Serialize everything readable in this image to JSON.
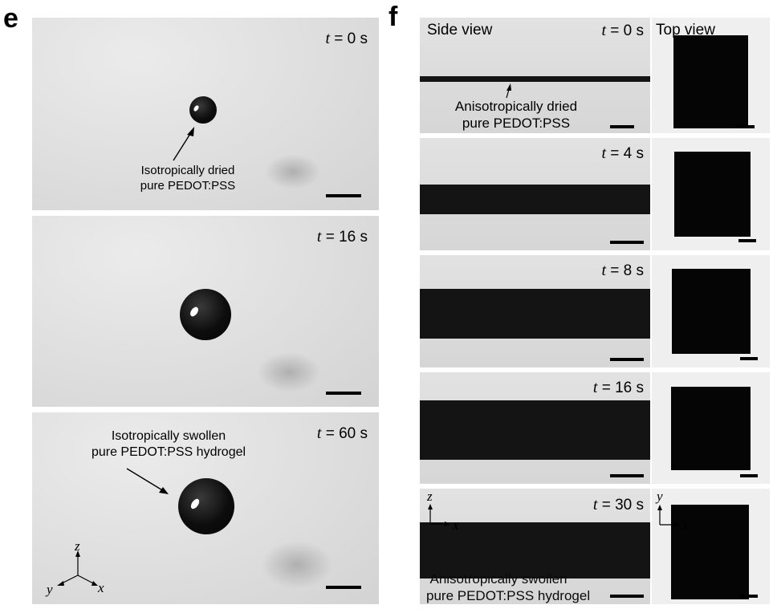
{
  "panel_e": {
    "label": "e",
    "frames": [
      {
        "time_var": "t",
        "time_rest": " = 0 s",
        "annotation": [
          "Isotropically dried",
          "pure PEDOT:PSS"
        ]
      },
      {
        "time_var": "t",
        "time_rest": " = 16 s"
      },
      {
        "time_var": "t",
        "time_rest": " = 60 s",
        "annotation": [
          "Isotropically swollen",
          "pure PEDOT:PSS hydrogel"
        ]
      }
    ],
    "axes": {
      "z": "z",
      "y": "y",
      "x": "x"
    }
  },
  "panel_f": {
    "label": "f",
    "side_view_title": "Side view",
    "top_view_title": "Top view",
    "rows": [
      {
        "time_var": "t",
        "time_rest": " = 0 s",
        "annotation": [
          "Anisotropically dried",
          "pure PEDOT:PSS"
        ]
      },
      {
        "time_var": "t",
        "time_rest": " = 4 s"
      },
      {
        "time_var": "t",
        "time_rest": " = 8 s"
      },
      {
        "time_var": "t",
        "time_rest": " = 16 s"
      },
      {
        "time_var": "t",
        "time_rest": " = 30 s",
        "annotation": [
          "Anisotropically swollen",
          "pure PEDOT:PSS hydrogel"
        ]
      }
    ],
    "side_axes": {
      "z": "z",
      "x": "x"
    },
    "top_axes": {
      "y": "y",
      "x": "x"
    }
  }
}
